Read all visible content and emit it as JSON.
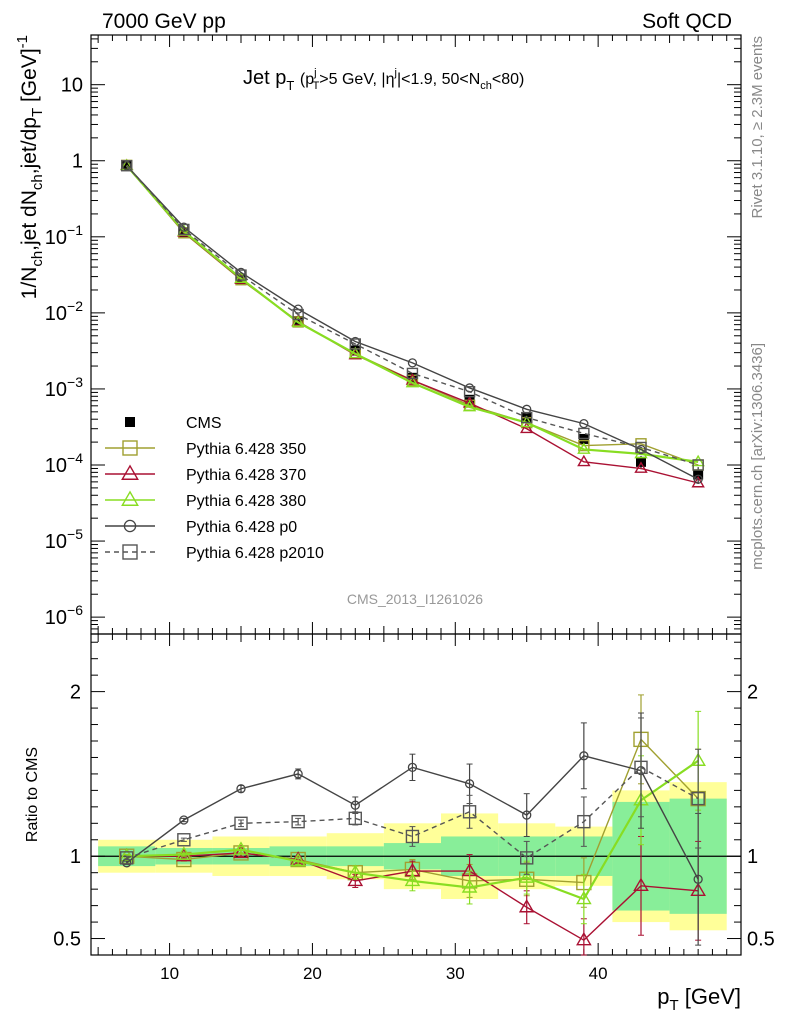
{
  "header": {
    "energy_label": "7000 GeV pp",
    "process_label": "Soft QCD"
  },
  "side": {
    "rivet_label": "Rivet 3.1.10, ≥ 2.3M events",
    "mcplots_label": "mcplots.cern.ch [arXiv:1306.3436]"
  },
  "chart_data": {
    "type": "line",
    "title_main": "Jet p",
    "title_main_sub": "T",
    "title_cuts": "(p",
    "title_cuts_sup": "j",
    "title_cuts_sub": "T",
    "title_cuts_2": ">5 GeV, |η",
    "title_cuts_sup2": "j",
    "title_cuts_3": "|<1.9, 50<N",
    "title_cuts_sub2": "ch",
    "title_cuts_4": "<80)",
    "analysis_id": "CMS_2013_I1261026",
    "ylabel": "1/N_ch,jet dN_ch,jet/dp_T [GeV]^-1",
    "ylabel_parts": [
      "1/N",
      "ch",
      ",jet dN",
      "ch",
      ",jet/dp",
      "T",
      " [GeV]",
      "-1"
    ],
    "ratio_ylabel": "Ratio to CMS",
    "xlabel": "p",
    "xlabel_sub": "T",
    "xlabel_unit": " [GeV]",
    "xlim": [
      4.5,
      50
    ],
    "ylim": [
      6e-07,
      45
    ],
    "yscale": "log",
    "ratio_ylim": [
      0.4,
      2.35
    ],
    "x_ticks": [
      10,
      20,
      30,
      40
    ],
    "y_ticks": [
      {
        "value": 10,
        "mant": "10",
        "exp": ""
      },
      {
        "value": 1,
        "mant": "1",
        "exp": ""
      },
      {
        "value": 0.1,
        "mant": "10",
        "exp": "−1"
      },
      {
        "value": 0.01,
        "mant": "10",
        "exp": "−2"
      },
      {
        "value": 0.001,
        "mant": "10",
        "exp": "−3"
      },
      {
        "value": 0.0001,
        "mant": "10",
        "exp": "−4"
      },
      {
        "value": 1e-05,
        "mant": "10",
        "exp": "−5"
      },
      {
        "value": 1e-06,
        "mant": "10",
        "exp": "−6"
      }
    ],
    "ratio_ticks": [
      {
        "value": 0.5,
        "label": "0.5"
      },
      {
        "value": 1,
        "label": "1"
      },
      {
        "value": 2,
        "label": "2"
      }
    ],
    "legend_position": "lower-left",
    "x": [
      7,
      11,
      15,
      19,
      23,
      27,
      31,
      35,
      39,
      43,
      47
    ],
    "bins": [
      [
        5,
        9
      ],
      [
        9,
        13
      ],
      [
        13,
        17
      ],
      [
        17,
        21
      ],
      [
        21,
        25
      ],
      [
        25,
        29
      ],
      [
        29,
        33
      ],
      [
        33,
        37
      ],
      [
        37,
        41
      ],
      [
        41,
        45
      ],
      [
        45,
        49
      ]
    ],
    "data": {
      "name": "CMS",
      "values": [
        0.86,
        0.115,
        0.027,
        0.0078,
        0.0032,
        0.0014,
        0.00072,
        0.00042,
        0.00022,
        0.00011,
        7.5e-05
      ],
      "err_rel": [
        0.02,
        0.03,
        0.04,
        0.04,
        0.05,
        0.06,
        0.08,
        0.1,
        0.13,
        0.2,
        0.25
      ],
      "band_green": [
        0.06,
        0.05,
        0.05,
        0.06,
        0.06,
        0.08,
        0.12,
        0.12,
        0.12,
        0.33,
        0.35
      ],
      "band_yellow": [
        0.1,
        0.1,
        0.12,
        0.12,
        0.14,
        0.2,
        0.26,
        0.2,
        0.18,
        0.4,
        0.45
      ]
    },
    "series": [
      {
        "name": "Pythia 6.428 350",
        "color": "#a0a030",
        "marker": "square-open",
        "dash": false,
        "values": [
          0.87,
          0.113,
          0.0273,
          0.0076,
          0.0029,
          0.0013,
          0.00061,
          0.00036,
          0.00018,
          0.00019,
          0.0001
        ],
        "ratio": [
          1.0,
          0.98,
          1.02,
          0.98,
          0.9,
          0.92,
          0.85,
          0.86,
          0.84,
          1.71,
          1.35
        ],
        "ratio_err": [
          0.01,
          0.01,
          0.02,
          0.02,
          0.04,
          0.06,
          0.1,
          0.1,
          0.15,
          0.27,
          0.3
        ]
      },
      {
        "name": "Pythia 6.428 370",
        "color": "#aa1133",
        "marker": "triangle-open",
        "dash": false,
        "values": [
          0.86,
          0.115,
          0.0275,
          0.0077,
          0.0028,
          0.0013,
          0.00065,
          0.0003,
          0.00011,
          9e-05,
          5.8e-05
        ],
        "ratio": [
          1.0,
          1.0,
          1.02,
          0.98,
          0.85,
          0.91,
          0.91,
          0.69,
          0.49,
          0.82,
          0.79
        ],
        "ratio_err": [
          0.01,
          0.01,
          0.02,
          0.02,
          0.04,
          0.06,
          0.1,
          0.1,
          0.13,
          0.3,
          0.3
        ]
      },
      {
        "name": "Pythia 6.428 380",
        "color": "#88dd22",
        "marker": "triangle-open",
        "dash": false,
        "values": [
          0.86,
          0.118,
          0.0283,
          0.0075,
          0.0029,
          0.0012,
          0.00058,
          0.00036,
          0.00016,
          0.00014,
          0.00011
        ],
        "ratio": [
          1.0,
          1.01,
          1.04,
          0.97,
          0.9,
          0.85,
          0.81,
          0.87,
          0.74,
          1.34,
          1.58
        ],
        "ratio_err": [
          0.01,
          0.01,
          0.02,
          0.02,
          0.04,
          0.06,
          0.1,
          0.1,
          0.15,
          0.27,
          0.3
        ]
      },
      {
        "name": "Pythia 6.428 p0",
        "color": "#444444",
        "marker": "circle-open",
        "dash": false,
        "values": [
          0.86,
          0.134,
          0.034,
          0.0112,
          0.0042,
          0.0022,
          0.00103,
          0.00054,
          0.00035,
          0.00016,
          6.5e-05
        ],
        "ratio": [
          0.96,
          1.22,
          1.41,
          1.5,
          1.31,
          1.54,
          1.44,
          1.25,
          1.61,
          1.52,
          0.86
        ],
        "ratio_err": [
          0.01,
          0.01,
          0.02,
          0.03,
          0.05,
          0.08,
          0.12,
          0.13,
          0.2,
          0.35,
          0.4
        ]
      },
      {
        "name": "Pythia 6.428 p2010",
        "color": "#555555",
        "marker": "square-open",
        "dash": true,
        "values": [
          0.86,
          0.125,
          0.0314,
          0.0095,
          0.0039,
          0.0016,
          0.00092,
          0.00042,
          0.00026,
          0.00017,
          0.0001
        ],
        "ratio": [
          0.99,
          1.1,
          1.2,
          1.21,
          1.23,
          1.12,
          1.27,
          0.99,
          1.21,
          1.54,
          1.35
        ],
        "ratio_err": [
          0.01,
          0.01,
          0.02,
          0.02,
          0.04,
          0.06,
          0.1,
          0.1,
          0.15,
          0.3,
          0.3
        ]
      }
    ]
  }
}
